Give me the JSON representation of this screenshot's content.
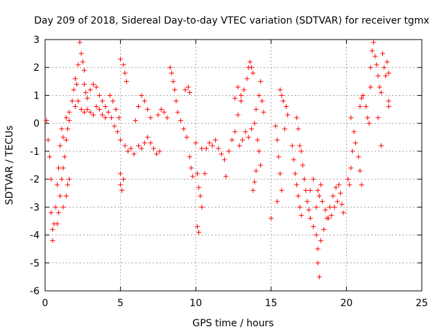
{
  "chart_data": {
    "type": "scatter",
    "title": "Day 209 of 2018, Sidereal Day-to-day VTEC variation (SDTVAR) for receiver tgmx",
    "xlabel": "GPS time / hours",
    "ylabel": "SDTVAR / TECUs",
    "xlim": [
      0,
      25
    ],
    "ylim": [
      -6,
      3
    ],
    "xticks": [
      0,
      5,
      10,
      15,
      20,
      25
    ],
    "yticks": [
      -6,
      -5,
      -4,
      -3,
      -2,
      -1,
      0,
      1,
      2,
      3
    ],
    "grid": true,
    "marker": "+",
    "color": "#ff0000",
    "series": [
      {
        "name": "SDTVAR",
        "points": [
          [
            0.1,
            0.1
          ],
          [
            0.2,
            -0.6
          ],
          [
            0.3,
            -1.2
          ],
          [
            0.4,
            -2.0
          ],
          [
            0.4,
            -3.2
          ],
          [
            0.5,
            -3.8
          ],
          [
            0.5,
            -4.2
          ],
          [
            0.6,
            -3.6
          ],
          [
            0.7,
            -3.0
          ],
          [
            0.8,
            -2.2
          ],
          [
            0.9,
            -1.6
          ],
          [
            1.0,
            -0.8
          ],
          [
            1.1,
            -0.2
          ],
          [
            1.2,
            -0.5
          ],
          [
            0.8,
            -3.6
          ],
          [
            0.9,
            -3.2
          ],
          [
            1.0,
            -2.6
          ],
          [
            1.1,
            -2.0
          ],
          [
            1.2,
            -1.6
          ],
          [
            1.3,
            -1.2
          ],
          [
            1.4,
            -0.6
          ],
          [
            1.5,
            -0.2
          ],
          [
            1.6,
            0.1
          ],
          [
            1.2,
            -3.0
          ],
          [
            1.4,
            -2.6
          ],
          [
            1.5,
            -2.2
          ],
          [
            1.6,
            -2.0
          ],
          [
            1.4,
            0.2
          ],
          [
            1.6,
            0.4
          ],
          [
            1.8,
            0.8
          ],
          [
            1.9,
            1.2
          ],
          [
            2.0,
            1.6
          ],
          [
            2.1,
            1.4
          ],
          [
            2.2,
            2.1
          ],
          [
            2.3,
            2.9
          ],
          [
            2.4,
            2.5
          ],
          [
            2.5,
            2.2
          ],
          [
            2.6,
            1.9
          ],
          [
            2.6,
            1.4
          ],
          [
            2.7,
            1.1
          ],
          [
            2.8,
            0.9
          ],
          [
            2.0,
            0.6
          ],
          [
            2.2,
            0.8
          ],
          [
            2.4,
            0.5
          ],
          [
            2.6,
            0.4
          ],
          [
            2.8,
            0.5
          ],
          [
            3.0,
            0.4
          ],
          [
            3.2,
            0.3
          ],
          [
            3.4,
            0.6
          ],
          [
            3.6,
            0.5
          ],
          [
            3.8,
            0.3
          ],
          [
            4.0,
            0.2
          ],
          [
            3.0,
            1.2
          ],
          [
            3.2,
            1.4
          ],
          [
            3.4,
            1.3
          ],
          [
            3.6,
            1.0
          ],
          [
            3.8,
            0.8
          ],
          [
            4.0,
            0.6
          ],
          [
            4.2,
            0.4
          ],
          [
            4.4,
            0.2
          ],
          [
            4.6,
            -0.1
          ],
          [
            4.8,
            -0.3
          ],
          [
            5.0,
            -0.6
          ],
          [
            4.3,
            1.0
          ],
          [
            4.5,
            0.8
          ],
          [
            4.7,
            0.5
          ],
          [
            4.9,
            0.2
          ],
          [
            5.0,
            -1.8
          ],
          [
            5.0,
            -2.2
          ],
          [
            5.1,
            -2.4
          ],
          [
            5.2,
            -2.0
          ],
          [
            5.0,
            2.3
          ],
          [
            5.2,
            2.1
          ],
          [
            5.3,
            1.8
          ],
          [
            5.4,
            1.5
          ],
          [
            5.3,
            -0.8
          ],
          [
            5.5,
            -1.0
          ],
          [
            5.7,
            -0.9
          ],
          [
            5.9,
            -1.1
          ],
          [
            6.0,
            0.1
          ],
          [
            6.2,
            0.6
          ],
          [
            6.4,
            1.0
          ],
          [
            6.6,
            0.8
          ],
          [
            6.8,
            0.5
          ],
          [
            7.0,
            0.2
          ],
          [
            6.2,
            -0.8
          ],
          [
            6.4,
            -0.9
          ],
          [
            6.6,
            -0.7
          ],
          [
            6.8,
            -0.5
          ],
          [
            7.0,
            -0.7
          ],
          [
            7.2,
            -0.9
          ],
          [
            7.4,
            -1.1
          ],
          [
            7.6,
            -1.0
          ],
          [
            7.5,
            0.3
          ],
          [
            7.7,
            0.5
          ],
          [
            7.9,
            0.4
          ],
          [
            8.1,
            0.2
          ],
          [
            8.3,
            2.0
          ],
          [
            8.4,
            1.8
          ],
          [
            8.5,
            1.5
          ],
          [
            8.6,
            1.2
          ],
          [
            8.7,
            0.8
          ],
          [
            8.8,
            0.4
          ],
          [
            9.0,
            0.1
          ],
          [
            9.2,
            -0.2
          ],
          [
            9.4,
            -0.5
          ],
          [
            9.5,
            1.3
          ],
          [
            9.6,
            1.1
          ],
          [
            9.3,
            1.2
          ],
          [
            9.7,
            -1.6
          ],
          [
            9.8,
            -1.9
          ],
          [
            9.6,
            -1.2
          ],
          [
            10.0,
            -0.7
          ],
          [
            10.1,
            -1.8
          ],
          [
            10.2,
            -2.3
          ],
          [
            10.3,
            -2.6
          ],
          [
            10.4,
            -3.0
          ],
          [
            10.1,
            -3.7
          ],
          [
            10.2,
            -3.9
          ],
          [
            10.6,
            -1.8
          ],
          [
            10.4,
            -0.9
          ],
          [
            10.7,
            -0.9
          ],
          [
            10.9,
            -0.7
          ],
          [
            11.1,
            -0.8
          ],
          [
            11.3,
            -0.6
          ],
          [
            11.5,
            -0.9
          ],
          [
            11.7,
            -1.1
          ],
          [
            11.9,
            -1.3
          ],
          [
            12.0,
            -1.9
          ],
          [
            12.2,
            -1.0
          ],
          [
            12.4,
            -0.6
          ],
          [
            12.6,
            -0.3
          ],
          [
            12.8,
            0.3
          ],
          [
            13.0,
            0.8
          ],
          [
            13.2,
            1.2
          ],
          [
            13.4,
            1.6
          ],
          [
            13.5,
            2.0
          ],
          [
            13.6,
            2.2
          ],
          [
            13.7,
            2.0
          ],
          [
            13.8,
            1.8
          ],
          [
            12.6,
            0.9
          ],
          [
            12.8,
            1.3
          ],
          [
            13.0,
            1.0
          ],
          [
            12.9,
            -0.8
          ],
          [
            13.1,
            -0.6
          ],
          [
            13.3,
            -0.3
          ],
          [
            13.5,
            -0.5
          ],
          [
            13.7,
            -0.2
          ],
          [
            13.9,
            0.0
          ],
          [
            14.0,
            0.5
          ],
          [
            14.2,
            1.0
          ],
          [
            14.3,
            1.5
          ],
          [
            14.1,
            -0.6
          ],
          [
            14.2,
            -1.0
          ],
          [
            14.3,
            -1.5
          ],
          [
            14.0,
            -1.7
          ],
          [
            13.9,
            -2.1
          ],
          [
            13.8,
            -2.4
          ],
          [
            14.4,
            0.8
          ],
          [
            14.5,
            0.4
          ],
          [
            15.0,
            -3.4
          ],
          [
            15.3,
            -0.1
          ],
          [
            15.4,
            -0.6
          ],
          [
            15.5,
            -1.2
          ],
          [
            15.6,
            -1.8
          ],
          [
            15.7,
            -2.4
          ],
          [
            15.4,
            -2.8
          ],
          [
            15.6,
            1.2
          ],
          [
            15.7,
            1.0
          ],
          [
            15.8,
            0.8
          ],
          [
            16.0,
            0.6
          ],
          [
            16.1,
            0.3
          ],
          [
            15.9,
            -0.2
          ],
          [
            16.4,
            -0.8
          ],
          [
            16.5,
            -1.3
          ],
          [
            16.6,
            -1.8
          ],
          [
            16.7,
            -2.2
          ],
          [
            16.8,
            -2.6
          ],
          [
            16.9,
            -3.0
          ],
          [
            17.0,
            -3.3
          ],
          [
            16.7,
            0.2
          ],
          [
            16.8,
            -0.2
          ],
          [
            16.9,
            -0.8
          ],
          [
            17.0,
            -1.0
          ],
          [
            17.1,
            -1.5
          ],
          [
            17.2,
            -2.0
          ],
          [
            17.3,
            -2.4
          ],
          [
            17.4,
            -2.8
          ],
          [
            17.5,
            -3.1
          ],
          [
            17.6,
            -3.4
          ],
          [
            17.8,
            -3.7
          ],
          [
            18.0,
            -4.0
          ],
          [
            18.1,
            -4.5
          ],
          [
            18.1,
            -5.0
          ],
          [
            18.2,
            -5.5
          ],
          [
            18.3,
            -4.2
          ],
          [
            18.5,
            -3.8
          ],
          [
            18.7,
            -3.4
          ],
          [
            18.9,
            -3.0
          ],
          [
            19.1,
            -2.6
          ],
          [
            19.3,
            -2.3
          ],
          [
            19.5,
            -2.2
          ],
          [
            19.6,
            -2.5
          ],
          [
            19.7,
            -2.9
          ],
          [
            19.8,
            -3.2
          ],
          [
            18.0,
            -3.0
          ],
          [
            18.2,
            -2.6
          ],
          [
            18.4,
            -2.8
          ],
          [
            18.6,
            -3.1
          ],
          [
            18.8,
            -3.4
          ],
          [
            19.0,
            -3.3
          ],
          [
            19.2,
            -3.0
          ],
          [
            19.4,
            -2.8
          ],
          [
            17.6,
            -2.4
          ],
          [
            17.8,
            -2.0
          ],
          [
            18.1,
            -2.4
          ],
          [
            18.3,
            -2.2
          ],
          [
            20.1,
            -2.0
          ],
          [
            20.2,
            -2.2
          ],
          [
            20.3,
            -1.6
          ],
          [
            20.4,
            -1.0
          ],
          [
            20.3,
            0.2
          ],
          [
            20.5,
            -0.3
          ],
          [
            20.6,
            -0.7
          ],
          [
            20.8,
            -1.2
          ],
          [
            20.9,
            -1.7
          ],
          [
            21.0,
            -2.2
          ],
          [
            20.9,
            0.6
          ],
          [
            21.0,
            0.9
          ],
          [
            21.1,
            1.0
          ],
          [
            21.3,
            0.6
          ],
          [
            21.4,
            0.2
          ],
          [
            21.5,
            0.0
          ],
          [
            21.6,
            1.3
          ],
          [
            21.6,
            2.0
          ],
          [
            21.7,
            2.6
          ],
          [
            21.8,
            2.9
          ],
          [
            21.9,
            2.4
          ],
          [
            22.0,
            2.1
          ],
          [
            22.1,
            1.7
          ],
          [
            22.2,
            1.3
          ],
          [
            22.3,
            1.1
          ],
          [
            22.4,
            2.5
          ],
          [
            22.5,
            2.0
          ],
          [
            22.6,
            1.7
          ],
          [
            22.7,
            2.2
          ],
          [
            22.8,
            1.8
          ],
          [
            22.8,
            0.8
          ],
          [
            22.8,
            0.6
          ],
          [
            22.1,
            0.2
          ],
          [
            22.3,
            -0.8
          ]
        ]
      }
    ]
  }
}
